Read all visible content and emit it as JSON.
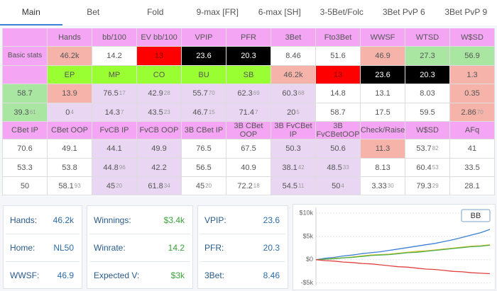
{
  "tabs": [
    "Main",
    "Bet",
    "Fold",
    "9-max [FR]",
    "6-max [SH]",
    "3-5Bet/Folc",
    "3Bet PvP 6",
    "3Bet PvP 9"
  ],
  "table": {
    "rows": [
      [
        {
          "bg": "#f4a6f4"
        },
        {
          "text": "Hands",
          "bg": "#f4a6f4"
        },
        {
          "text": "bb/100",
          "bg": "#f4a6f4"
        },
        {
          "text": "EV bb/100",
          "bg": "#f4a6f4"
        },
        {
          "text": "VPIP",
          "bg": "#f4a6f4"
        },
        {
          "text": "PFR",
          "bg": "#f4a6f4"
        },
        {
          "text": "3Bet",
          "bg": "#f4a6f4"
        },
        {
          "text": "Fto3Bet",
          "bg": "#f4a6f4"
        },
        {
          "text": "WWSF",
          "bg": "#f4a6f4"
        },
        {
          "text": "WTSD",
          "bg": "#f4a6f4"
        },
        {
          "text": "W$SD",
          "bg": "#f4a6f4"
        }
      ],
      [
        {
          "text": "Basic stats",
          "bg": "#f4a6f4"
        },
        {
          "text": "46.2k",
          "bg": "#f5b3aa"
        },
        {
          "text": "14.2",
          "bg": "#ffffff"
        },
        {
          "text": "13",
          "bg": "#ff0000"
        },
        {
          "text": "23.6",
          "bg": "#000000"
        },
        {
          "text": "20.3",
          "bg": "#000000"
        },
        {
          "text": "8.46",
          "bg": "#ffffff"
        },
        {
          "text": "51.6",
          "bg": "#ffffff"
        },
        {
          "text": "46.9",
          "bg": "#f5b3aa"
        },
        {
          "text": "27.3",
          "bg": "#a8e6a2"
        },
        {
          "text": "56.9",
          "bg": "#a8e6a2"
        }
      ],
      [
        {
          "bg": "#f4a6f4"
        },
        {
          "text": "EP",
          "bg": "#99ff33"
        },
        {
          "text": "MP",
          "bg": "#99ff33"
        },
        {
          "text": "CO",
          "bg": "#99ff33"
        },
        {
          "text": "BU",
          "bg": "#99ff33"
        },
        {
          "text": "SB",
          "bg": "#99ff33"
        },
        {
          "text": "46.2k",
          "bg": "#f5b3aa"
        },
        {
          "text": "13",
          "bg": "#ff0000"
        },
        {
          "text": "23.6",
          "bg": "#000000"
        },
        {
          "text": "20.3",
          "bg": "#000000"
        },
        {
          "text": "1.3",
          "bg": "#f5b3aa"
        }
      ],
      [
        {
          "text": "58.7",
          "bg": "#a8e6a2"
        },
        {
          "text": "13.9",
          "bg": "#f5b3aa"
        },
        {
          "text": "76.5",
          "sub": "17",
          "bg": "#e8d6f2"
        },
        {
          "text": "42.9",
          "sub": "28",
          "bg": "#e8d6f2"
        },
        {
          "text": "55.7",
          "sub": "70",
          "bg": "#e8d6f2"
        },
        {
          "text": "62.3",
          "sub": "69",
          "bg": "#e8d6f2"
        },
        {
          "text": "60.3",
          "sub": "68",
          "bg": "#e8d6f2"
        },
        {
          "text": "14.8",
          "bg": "#ffffff"
        },
        {
          "text": "13.1",
          "bg": "#ffffff"
        },
        {
          "text": "8.03",
          "bg": "#ffffff"
        },
        {
          "text": "0.35",
          "bg": "#f5b3aa"
        }
      ],
      [
        {
          "text": "39.3",
          "sub": "61",
          "bg": "#a8e6a2"
        },
        {
          "text": "0",
          "sub": "4",
          "bg": "#e8d6f2"
        },
        {
          "text": "14.3",
          "sub": "7",
          "bg": "#e8d6f2"
        },
        {
          "text": "43.5",
          "sub": "23",
          "bg": "#e8d6f2"
        },
        {
          "text": "46.7",
          "sub": "15",
          "bg": "#e8d6f2"
        },
        {
          "text": "71.4",
          "sub": "7",
          "bg": "#e8d6f2"
        },
        {
          "text": "20",
          "sub": "5",
          "bg": "#e8d6f2"
        },
        {
          "text": "58.7",
          "bg": "#ffffff"
        },
        {
          "text": "17.5",
          "bg": "#ffffff"
        },
        {
          "text": "59.5",
          "bg": "#ffffff"
        },
        {
          "text": "2.86",
          "sub": "70",
          "bg": "#f5b3aa"
        }
      ],
      [
        {
          "text": "CBet IP",
          "bg": "#f4a6f4"
        },
        {
          "text": "CBet OOP",
          "bg": "#f4a6f4"
        },
        {
          "text": "FvCB IP",
          "bg": "#f4a6f4"
        },
        {
          "text": "FvCB OOP",
          "bg": "#f4a6f4"
        },
        {
          "text": "3B CBet IP",
          "bg": "#f4a6f4"
        },
        {
          "text": "3B CBet OOP",
          "bg": "#f4a6f4"
        },
        {
          "text": "3B FvCBet IP",
          "bg": "#f4a6f4"
        },
        {
          "text": "3B FvCBetOOP",
          "bg": "#f4a6f4"
        },
        {
          "text": "Check/Raise",
          "bg": "#f4a6f4"
        },
        {
          "text": "W$SD",
          "bg": "#f4a6f4"
        },
        {
          "text": "AFq",
          "bg": "#f4a6f4"
        }
      ],
      [
        {
          "text": "70.6",
          "bg": "#ffffff"
        },
        {
          "text": "49.1",
          "bg": "#ffffff"
        },
        {
          "text": "44.1",
          "bg": "#e8d6f2"
        },
        {
          "text": "49.9",
          "bg": "#e8d6f2"
        },
        {
          "text": "76.5",
          "bg": "#ffffff"
        },
        {
          "text": "67.5",
          "bg": "#ffffff"
        },
        {
          "text": "50.3",
          "bg": "#e8d6f2"
        },
        {
          "text": "50.6",
          "bg": "#e8d6f2"
        },
        {
          "text": "11.3",
          "bg": "#f5b3aa"
        },
        {
          "text": "53.7",
          "sub": "82",
          "bg": "#ffffff"
        },
        {
          "text": "41",
          "bg": "#ffffff"
        }
      ],
      [
        {
          "text": "53.3",
          "bg": "#ffffff"
        },
        {
          "text": "53.8",
          "bg": "#ffffff"
        },
        {
          "text": "44.8",
          "sub": "96",
          "bg": "#e8d6f2"
        },
        {
          "text": "42.2",
          "bg": "#e8d6f2"
        },
        {
          "text": "56.5",
          "bg": "#ffffff"
        },
        {
          "text": "40.9",
          "bg": "#ffffff"
        },
        {
          "text": "38.1",
          "sub": "42",
          "bg": "#e8d6f2"
        },
        {
          "text": "48.5",
          "sub": "33",
          "bg": "#e8d6f2"
        },
        {
          "text": "8.13",
          "bg": "#ffffff"
        },
        {
          "text": "60.4",
          "sub": "53",
          "bg": "#ffffff"
        },
        {
          "text": "33.5",
          "bg": "#ffffff"
        }
      ],
      [
        {
          "text": "50",
          "bg": "#ffffff"
        },
        {
          "text": "58.1",
          "sub": "93",
          "bg": "#ffffff"
        },
        {
          "text": "45",
          "sub": "20",
          "bg": "#e8d6f2"
        },
        {
          "text": "61.8",
          "sub": "34",
          "bg": "#e8d6f2"
        },
        {
          "text": "45",
          "sub": "20",
          "bg": "#ffffff"
        },
        {
          "text": "72.2",
          "sub": "18",
          "bg": "#ffffff"
        },
        {
          "text": "54.5",
          "sub": "11",
          "bg": "#e8d6f2"
        },
        {
          "text": "50",
          "sub": "4",
          "bg": "#e8d6f2"
        },
        {
          "text": "3.33",
          "sub": "30",
          "bg": "#ffffff"
        },
        {
          "text": "79.3",
          "sub": "29",
          "bg": "#ffffff"
        },
        {
          "text": "28.1",
          "bg": "#ffffff"
        }
      ]
    ]
  },
  "summary": [
    [
      {
        "label": "Hands:",
        "value": "46.2k",
        "color": "#2d6ca8"
      },
      {
        "label": "Home:",
        "value": "NL50",
        "color": "#2d6ca8"
      },
      {
        "label": "WWSF:",
        "value": "46.9",
        "color": "#2d6ca8"
      }
    ],
    [
      {
        "label": "Winnings:",
        "value": "$3.4k",
        "color": "#3aa23a"
      },
      {
        "label": "Winrate:",
        "value": "14.2",
        "color": "#3aa23a"
      },
      {
        "label": "Expected V:",
        "value": "$3k",
        "color": "#3aa23a"
      }
    ],
    [
      {
        "label": "VPIP:",
        "value": "23.6",
        "color": "#2d6ca8"
      },
      {
        "label": "PFR:",
        "value": "20.3",
        "color": "#2d6ca8"
      },
      {
        "label": "3Bet:",
        "value": "8.46",
        "color": "#2d6ca8"
      }
    ]
  ],
  "graph": {
    "type": "line",
    "button": "BB",
    "ylim": [
      -5500,
      10000
    ],
    "yticks": [
      {
        "value": 10000,
        "label": "$10k"
      },
      {
        "value": 5000,
        "label": "$5k"
      },
      {
        "value": 0,
        "label": "$0"
      },
      {
        "value": -5000,
        "label": "-$5k"
      }
    ],
    "series": [
      {
        "color": "#3b7fd6",
        "values": [
          0,
          300,
          500,
          800,
          1000,
          1300,
          1500,
          1700,
          2000,
          2300,
          2600,
          2900,
          3200,
          3500,
          3900,
          4300,
          4800,
          5300,
          5800,
          6500
        ]
      },
      {
        "color": "#e0c020",
        "values": [
          0,
          100,
          300,
          400,
          600,
          800,
          1000,
          1100,
          1200,
          1400,
          1600,
          1800,
          1900,
          2100,
          2300,
          2500,
          2700,
          2900,
          3000,
          3200
        ]
      },
      {
        "color": "#4caf50",
        "values": [
          0,
          100,
          200,
          400,
          500,
          700,
          900,
          1000,
          1100,
          1300,
          1500,
          1600,
          1800,
          2000,
          2200,
          2400,
          2600,
          2800,
          2900,
          3100
        ]
      },
      {
        "color": "#e04040",
        "values": [
          0,
          -200,
          -300,
          -500,
          -600,
          -800,
          -900,
          -1100,
          -1300,
          -1500,
          -1600,
          -1800,
          -2000,
          -2100,
          -2300,
          -2500,
          -2600,
          -2800,
          -2900,
          -3000
        ]
      }
    ]
  }
}
